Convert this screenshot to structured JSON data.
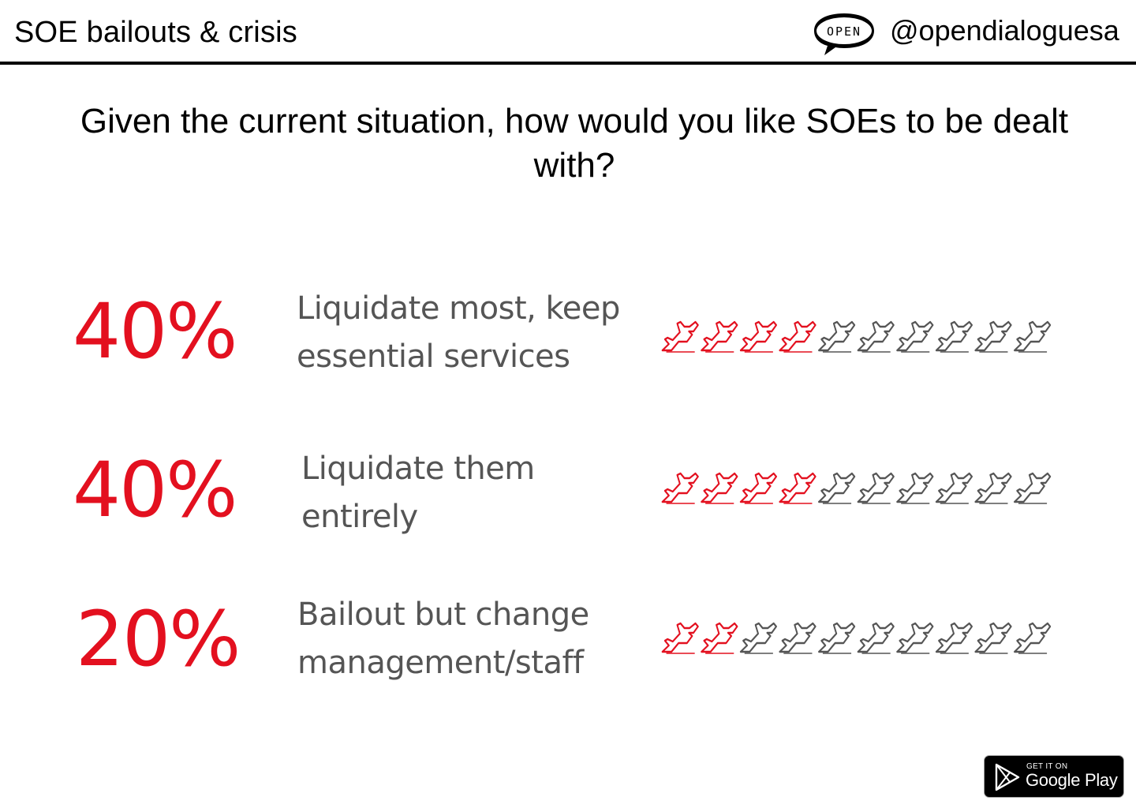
{
  "header": {
    "title": "SOE bailouts & crisis",
    "logo_text": "OPEN",
    "handle": "@opendialoguesa"
  },
  "question": "Given the current situation, how would you like SOEs to be dealt with?",
  "chart_data": {
    "type": "pictogram",
    "title": "Given the current situation, how would you like SOEs to be dealt with?",
    "icon": "airplane-icon",
    "icons_per_row": 10,
    "colors": {
      "filled": "#e3101f",
      "empty": "#555555"
    },
    "rows": [
      {
        "percent_label": "40%",
        "value": 40,
        "label_lines": [
          "Liquidate most, keep",
          "essential services"
        ],
        "filled": 4
      },
      {
        "percent_label": "40%",
        "value": 40,
        "label_lines": [
          "Liquidate them",
          "entirely"
        ],
        "filled": 4
      },
      {
        "percent_label": "20%",
        "value": 20,
        "label_lines": [
          "Bailout but change",
          "management/staff"
        ],
        "filled": 2
      }
    ]
  },
  "badge": {
    "small_text": "GET IT ON",
    "big_text": "Google Play"
  }
}
